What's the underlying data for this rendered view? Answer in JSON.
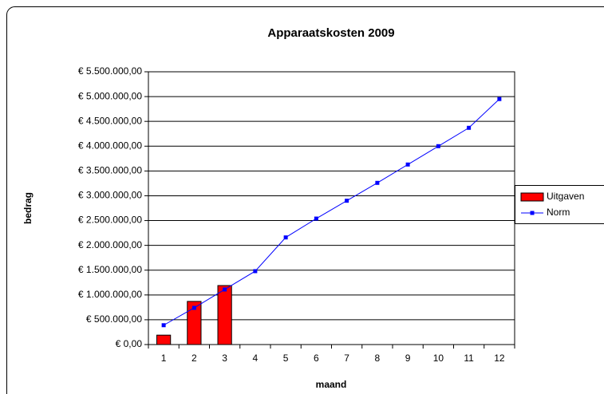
{
  "chart_data": {
    "type": "bar-line",
    "title": "Apparaatskosten 2009",
    "x_label": "maand",
    "y_label": "bedrag",
    "categories": [
      "1",
      "2",
      "3",
      "4",
      "5",
      "6",
      "7",
      "8",
      "9",
      "10",
      "11",
      "12"
    ],
    "series": [
      {
        "name": "Uitgaven",
        "type": "bar",
        "color": "#ff0000",
        "values": [
          190000,
          870000,
          1190000,
          null,
          null,
          null,
          null,
          null,
          null,
          null,
          null,
          null
        ]
      },
      {
        "name": "Norm",
        "type": "line",
        "color": "#0000ff",
        "values": [
          390000,
          740000,
          1110000,
          1480000,
          2160000,
          2540000,
          2900000,
          3260000,
          3630000,
          4000000,
          4370000,
          4950000
        ]
      }
    ],
    "ylim": [
      0,
      5500000
    ],
    "yticks": [
      {
        "value": 0,
        "label": "€ 0,00"
      },
      {
        "value": 500000,
        "label": "€ 500.000,00"
      },
      {
        "value": 1000000,
        "label": "€ 1.000.000,00"
      },
      {
        "value": 1500000,
        "label": "€ 1.500.000,00"
      },
      {
        "value": 2000000,
        "label": "€ 2.000.000,00"
      },
      {
        "value": 2500000,
        "label": "€ 2.500.000,00"
      },
      {
        "value": 3000000,
        "label": "€ 3.000.000,00"
      },
      {
        "value": 3500000,
        "label": "€ 3.500.000,00"
      },
      {
        "value": 4000000,
        "label": "€ 4.000.000,00"
      },
      {
        "value": 4500000,
        "label": "€ 4.500.000,00"
      },
      {
        "value": 5000000,
        "label": "€ 5.000.000,00"
      },
      {
        "value": 5500000,
        "label": "€ 5.500.000,00"
      }
    ],
    "grid": true,
    "legend": "right"
  }
}
